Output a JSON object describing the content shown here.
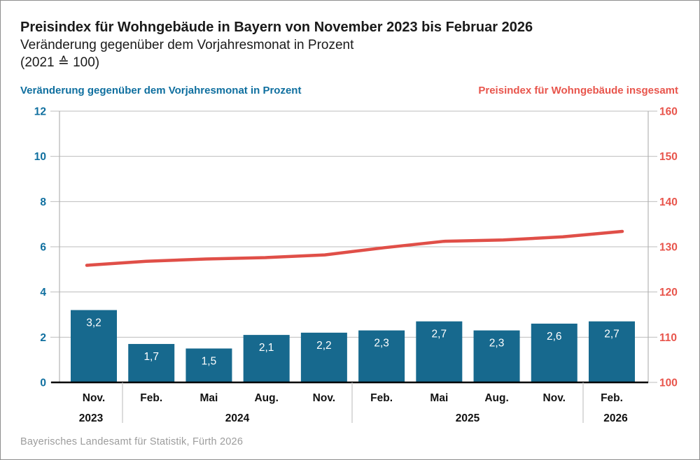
{
  "header": {
    "title": "Preisindex für Wohngebäude in Bayern von November 2023 bis Februar 2026",
    "subtitle": "Veränderung gegenüber dem Vorjahresmonat in Prozent",
    "base_note": "(2021 ≙ 100)"
  },
  "axes": {
    "left_title": "Veränderung gegenüber dem Vorjahresmonat in Prozent",
    "left_color": "#0f6f9f",
    "right_title": "Preisindex für Wohngebäude insgesamt",
    "right_color": "#e8554c"
  },
  "chart_data": {
    "type": "bar+line combo, dual y-axes",
    "months": [
      "Nov.",
      "Feb.",
      "Mai",
      "Aug.",
      "Nov.",
      "Feb.",
      "Mai",
      "Aug.",
      "Nov.",
      "Feb."
    ],
    "year_groups": [
      {
        "label": "2023",
        "span": 1
      },
      {
        "label": "2024",
        "span": 4
      },
      {
        "label": "2025",
        "span": 4
      },
      {
        "label": "2026",
        "span": 1
      }
    ],
    "bars": {
      "name": "Veränderung gegenüber dem Vorjahresmonat in Prozent",
      "color": "#17698e",
      "values": [
        3.2,
        1.7,
        1.5,
        2.1,
        2.2,
        2.3,
        2.7,
        2.3,
        2.6,
        2.7
      ],
      "labels": [
        "3,2",
        "1,7",
        "1,5",
        "2,1",
        "2,2",
        "2,3",
        "2,7",
        "2,3",
        "2,6",
        "2,7"
      ]
    },
    "line": {
      "name": "Preisindex für Wohngebäude insgesamt",
      "color": "#e04f48",
      "values": [
        125.9,
        126.8,
        127.3,
        127.6,
        128.2,
        129.8,
        131.2,
        131.5,
        132.2,
        133.4
      ]
    },
    "left_axis": {
      "min": 0,
      "max": 12,
      "step": 2,
      "tick_color": "#0f6f9f"
    },
    "right_axis": {
      "min": 100,
      "max": 160,
      "step": 10,
      "tick_color": "#e8554c"
    },
    "grid": true,
    "legend_position": "above chart as colored axis titles"
  },
  "footer": {
    "source": "Bayerisches Landesamt für Statistik, Fürth 2026"
  }
}
